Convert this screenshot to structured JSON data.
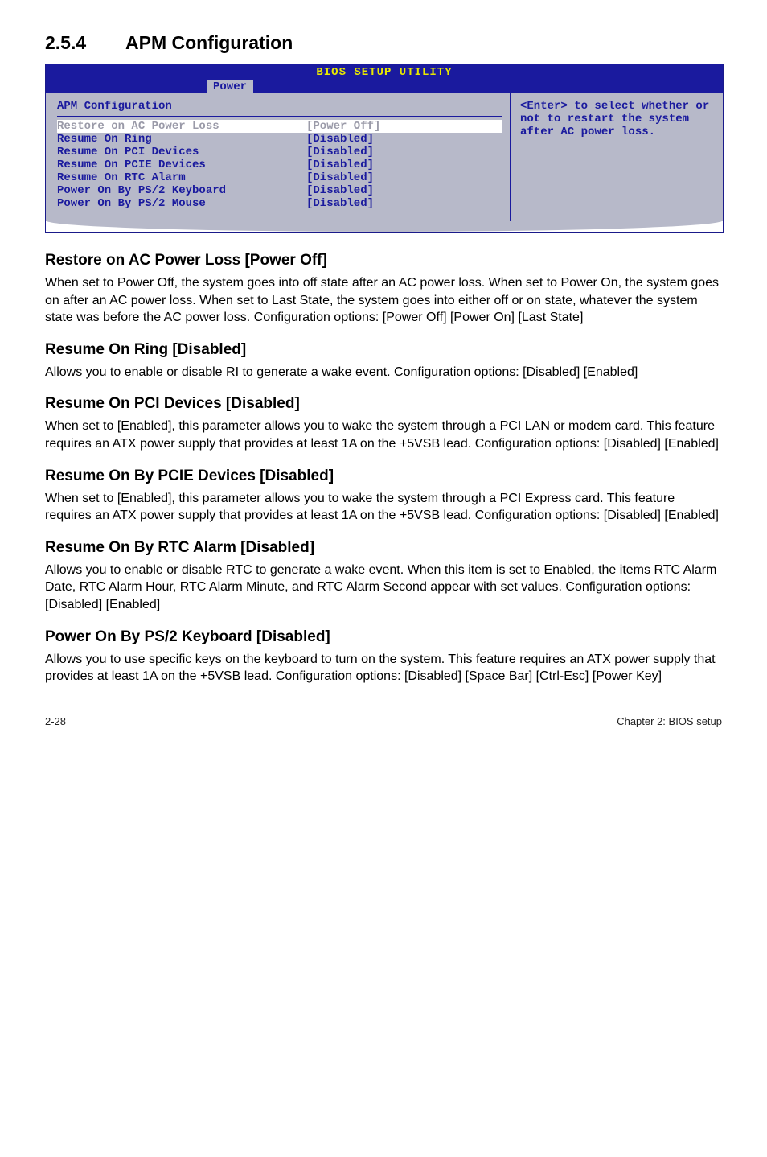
{
  "section": {
    "num": "2.5.4",
    "title": "APM Configuration"
  },
  "bios": {
    "title": "BIOS SETUP UTILITY",
    "tab": "Power",
    "left_title": "APM Configuration",
    "rows": [
      {
        "label": "Restore on AC Power Loss",
        "value": "[Power Off]",
        "selected": true
      },
      {
        "label": "",
        "value": "",
        "selected": false
      },
      {
        "label": "Resume On Ring",
        "value": "[Disabled]",
        "selected": false
      },
      {
        "label": "Resume On PCI Devices",
        "value": "[Disabled]",
        "selected": false
      },
      {
        "label": "Resume On PCIE Devices",
        "value": "[Disabled]",
        "selected": false
      },
      {
        "label": "Resume On RTC Alarm",
        "value": "[Disabled]",
        "selected": false
      },
      {
        "label": "Power On By PS/2 Keyboard",
        "value": "[Disabled]",
        "selected": false
      },
      {
        "label": "Power On By PS/2 Mouse",
        "value": "[Disabled]",
        "selected": false
      }
    ],
    "help": "<Enter> to select whether or not to restart the system after AC power loss."
  },
  "sections": [
    {
      "heading": "Restore on AC Power Loss [Power Off]",
      "body": "When set to Power Off, the system goes into off state after an AC power loss. When set to Power On, the system goes on after an AC power loss. When set to Last State, the system goes into either off or on state, whatever the system state was before the AC power loss. Configuration options: [Power Off] [Power On] [Last State]"
    },
    {
      "heading": "Resume On Ring [Disabled]",
      "body": "Allows you to enable or disable RI to generate a wake event. Configuration options: [Disabled] [Enabled]"
    },
    {
      "heading": "Resume On PCI Devices [Disabled]",
      "body": "When set to [Enabled], this parameter allows you to wake the system through a PCI LAN or modem card. This feature requires an ATX power supply that provides at least 1A on the +5VSB lead. Configuration options: [Disabled] [Enabled]"
    },
    {
      "heading": "Resume On By PCIE Devices [Disabled]",
      "body": "When set to [Enabled], this parameter allows you to wake the system through a PCI Express card. This feature requires an ATX power supply that provides at least 1A on the +5VSB lead.  Configuration options: [Disabled] [Enabled]"
    },
    {
      "heading": "Resume On By RTC Alarm [Disabled]",
      "body": "Allows you to enable or disable RTC to generate a wake event. When this item is set to Enabled, the items RTC Alarm Date, RTC Alarm Hour, RTC Alarm Minute, and RTC Alarm Second appear with set values. Configuration options: [Disabled] [Enabled]"
    },
    {
      "heading": "Power On By PS/2 Keyboard [Disabled]",
      "body": "Allows you to use specific keys on the keyboard to turn on the system. This feature requires an ATX power supply that provides at least 1A on the +5VSB lead. Configuration options: [Disabled] [Space Bar] [Ctrl-Esc] [Power Key]"
    }
  ],
  "footer": {
    "left": "2-28",
    "right": "Chapter 2: BIOS setup"
  }
}
